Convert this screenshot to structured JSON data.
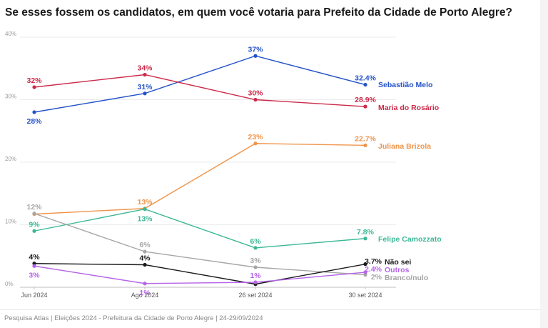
{
  "chart_data": {
    "type": "line",
    "title": "Se esses fossem os candidatos, em quem você votaria para Prefeito da Cidade de Porto Alegre?",
    "categories": [
      "Jun 2024",
      "Ago 2024",
      "26 set 2024",
      "30 set 2024"
    ],
    "ylim": [
      0,
      40
    ],
    "yticks": [
      "0%",
      "10%",
      "20%",
      "30%",
      "40%"
    ],
    "grid": true,
    "series": [
      {
        "name": "Sebastião Melo",
        "color": "#2452c9",
        "values": [
          28,
          31,
          37,
          32.4
        ],
        "labels": [
          "28%",
          "31%",
          "37%",
          "32.4%"
        ]
      },
      {
        "name": "Maria do Rosário",
        "color": "#cc2a4a",
        "values": [
          32,
          34,
          30,
          28.9
        ],
        "labels": [
          "32%",
          "34%",
          "30%",
          "28.9%"
        ]
      },
      {
        "name": "Juliana Brizola",
        "color": "#f0944a",
        "values": [
          11.7,
          12.6,
          23,
          22.7
        ],
        "labels": [
          "",
          "13%",
          "23%",
          "22.7%"
        ]
      },
      {
        "name": "Felipe Camozzato",
        "color": "#3cb896",
        "values": [
          9,
          12.5,
          6.3,
          7.8
        ],
        "labels": [
          "9%",
          "13%",
          "6%",
          "7.8%"
        ]
      },
      {
        "name": "Branco/nulo",
        "color": "#a6a6a6",
        "values": [
          11.8,
          5.7,
          3.2,
          2
        ],
        "labels": [
          "12%",
          "6%",
          "3%",
          "2%"
        ]
      },
      {
        "name": "Não sei",
        "color": "#1a1a1a",
        "values": [
          3.8,
          3.6,
          0.5,
          3.7
        ],
        "labels": [
          "4%",
          "4%",
          "",
          "3.7%"
        ]
      },
      {
        "name": "Outros",
        "color": "#b565e8",
        "values": [
          3.4,
          0.6,
          0.8,
          2.4
        ],
        "labels": [
          "3%",
          "1%",
          "1%",
          "2.4%"
        ]
      }
    ]
  },
  "footer": "Pesquisa Atlas  |  Eleições 2024 - Prefeitura da Cidade de Porto Alegre  |  24-29/09/2024"
}
